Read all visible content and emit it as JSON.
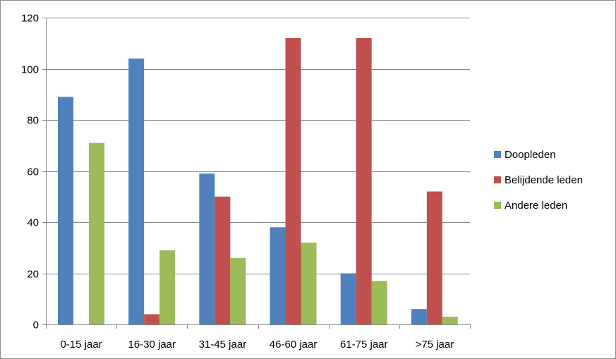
{
  "colors": {
    "grid": "#868686",
    "axis": "#868686",
    "background": "#ffffff"
  },
  "chart_data": {
    "type": "bar",
    "title": "",
    "xlabel": "",
    "ylabel": "",
    "ylim": [
      0,
      120
    ],
    "yticks": [
      0,
      20,
      40,
      60,
      80,
      100,
      120
    ],
    "grid": true,
    "legend_position": "right",
    "categories": [
      "0-15 jaar",
      "16-30 jaar",
      "31-45 jaar",
      "46-60 jaar",
      "61-75 jaar",
      ">75 jaar"
    ],
    "series": [
      {
        "name": "Doopleden",
        "color": "#4f81bd",
        "values": [
          89,
          104,
          59,
          38,
          20,
          6
        ]
      },
      {
        "name": "Belijdende leden",
        "color": "#c0504d",
        "values": [
          0,
          4,
          50,
          112,
          112,
          52
        ]
      },
      {
        "name": "Andere leden",
        "color": "#9bbb59",
        "values": [
          71,
          29,
          26,
          32,
          17,
          3
        ]
      }
    ]
  }
}
